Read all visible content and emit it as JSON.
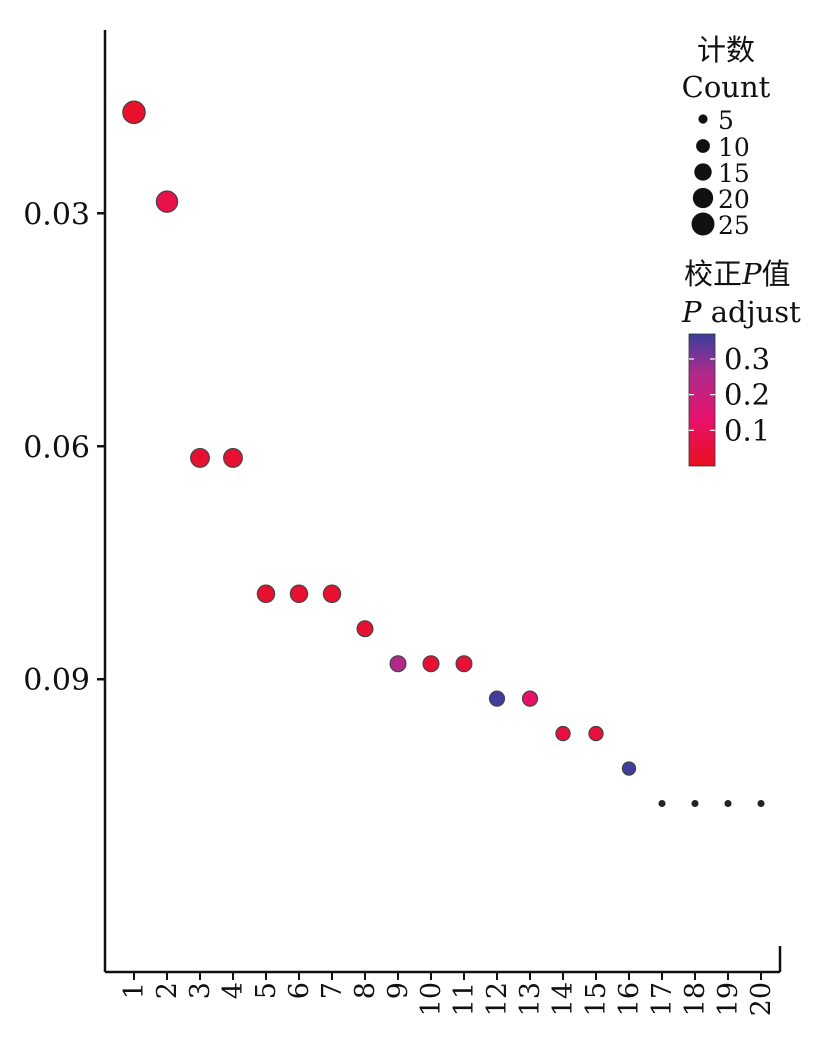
{
  "chart_data": {
    "type": "scatter",
    "x": [
      "1",
      "2",
      "3",
      "4",
      "5",
      "6",
      "7",
      "8",
      "9",
      "10",
      "11",
      "12",
      "13",
      "14",
      "15",
      "16",
      "17",
      "18",
      "19",
      "20"
    ],
    "y": [
      0.017,
      0.0285,
      0.0615,
      0.0615,
      0.079,
      0.079,
      0.079,
      0.0835,
      0.088,
      0.088,
      0.088,
      0.0925,
      0.0925,
      0.097,
      0.097,
      0.1015,
      0.106,
      0.106,
      0.106,
      0.106
    ],
    "count": [
      20,
      18,
      14,
      14,
      12,
      12,
      12,
      10,
      10,
      10,
      10,
      9,
      9,
      8,
      8,
      7,
      2,
      2,
      2,
      2
    ],
    "p_adjust": [
      0.02,
      0.07,
      0.03,
      0.03,
      0.03,
      0.03,
      0.03,
      0.03,
      0.24,
      0.04,
      0.04,
      0.36,
      0.12,
      0.05,
      0.05,
      0.36,
      0.1,
      0.1,
      0.1,
      0.1
    ],
    "yticks": [
      {
        "value": 0.03,
        "label": "0.03"
      },
      {
        "value": 0.06,
        "label": "0.06"
      },
      {
        "value": 0.09,
        "label": "0.09"
      }
    ],
    "ylim": [
      0.0064,
      0.1277
    ],
    "y_reversed": true,
    "legend": {
      "position": "top-right",
      "size": {
        "title_cn": "计数",
        "title_en": "Count",
        "entries": [
          {
            "value": 5,
            "label": "5"
          },
          {
            "value": 10,
            "label": "10"
          },
          {
            "value": 15,
            "label": "15"
          },
          {
            "value": 20,
            "label": "20"
          },
          {
            "value": 25,
            "label": "25"
          }
        ]
      },
      "color": {
        "title_cn_prefix": "校正",
        "title_cn_italic": "P",
        "title_cn_suffix": "值",
        "title_en_italic": "P",
        "title_en_rest": " adjust",
        "ticks": [
          {
            "value": 0.3,
            "label": "0.3"
          },
          {
            "value": 0.2,
            "label": "0.2"
          },
          {
            "value": 0.1,
            "label": "0.1"
          }
        ],
        "range": [
          0.0,
          0.37
        ],
        "gradient": [
          "#e8101f",
          "#e8116a",
          "#b02a8c",
          "#3a3e9e"
        ]
      }
    }
  }
}
